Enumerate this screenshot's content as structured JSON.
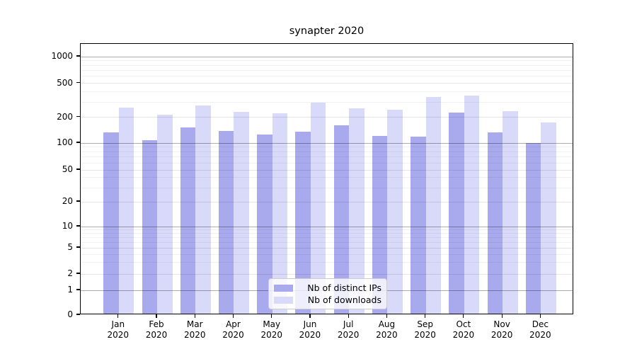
{
  "chart_data": {
    "type": "bar",
    "title": "synapter 2020",
    "categories": [
      "Jan",
      "Feb",
      "Mar",
      "Apr",
      "May",
      "Jun",
      "Jul",
      "Aug",
      "Sep",
      "Oct",
      "Nov",
      "Dec"
    ],
    "category_year": "2020",
    "series": [
      {
        "name": "Nb of distinct IPs",
        "color": "#a9a9ee",
        "values": [
          128,
          104,
          145,
          134,
          121,
          131,
          156,
          116,
          114,
          220,
          129,
          96
        ]
      },
      {
        "name": "Nb of downloads",
        "color": "#d9d9fa",
        "values": [
          248,
          205,
          263,
          224,
          213,
          284,
          246,
          234,
          333,
          345,
          228,
          166
        ]
      }
    ],
    "xlabel": "",
    "ylabel": "",
    "yaxis": {
      "scale": "symlog",
      "ticks": [
        0,
        1,
        2,
        5,
        10,
        20,
        50,
        100,
        200,
        500,
        1000
      ],
      "tick_labels": [
        "0",
        "1",
        "2",
        "5",
        "10",
        "20",
        "50",
        "100",
        "200",
        "500",
        "1000"
      ],
      "ylim": [
        0,
        1500
      ]
    },
    "legend": {
      "position": "lower center",
      "background": "rgba(255,255,255,0.8)"
    },
    "grid": {
      "on": true,
      "decade_color": "#ababab",
      "minor_color": "#ececec"
    }
  }
}
